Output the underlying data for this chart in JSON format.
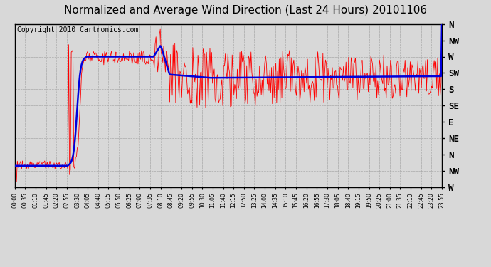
{
  "title": "Normalized and Average Wind Direction (Last 24 Hours) 20101106",
  "copyright": "Copyright 2010 Cartronics.com",
  "background_color": "#d8d8d8",
  "red_color": "#ff0000",
  "blue_color": "#0000dd",
  "grid_color": "#aaaaaa",
  "title_fontsize": 11,
  "copyright_fontsize": 7,
  "ytick_labels_top_to_bottom": [
    "N",
    "NW",
    "W",
    "SW",
    "S",
    "SE",
    "E",
    "NE",
    "N",
    "NW",
    "W"
  ],
  "ytick_values": [
    0,
    1,
    2,
    3,
    4,
    5,
    6,
    7,
    8,
    9,
    10
  ],
  "xtick_labels": [
    "00:00",
    "00:35",
    "01:10",
    "01:45",
    "02:20",
    "02:55",
    "03:30",
    "04:05",
    "04:40",
    "05:15",
    "05:50",
    "06:25",
    "07:00",
    "07:35",
    "08:10",
    "08:45",
    "09:20",
    "09:55",
    "10:30",
    "11:05",
    "11:40",
    "12:15",
    "12:50",
    "13:25",
    "14:00",
    "14:35",
    "15:10",
    "15:45",
    "16:20",
    "16:55",
    "17:30",
    "18:05",
    "18:40",
    "19:15",
    "19:50",
    "20:25",
    "21:00",
    "21:35",
    "22:10",
    "22:45",
    "23:20",
    "23:55"
  ],
  "n_points": 500,
  "seed": 99
}
